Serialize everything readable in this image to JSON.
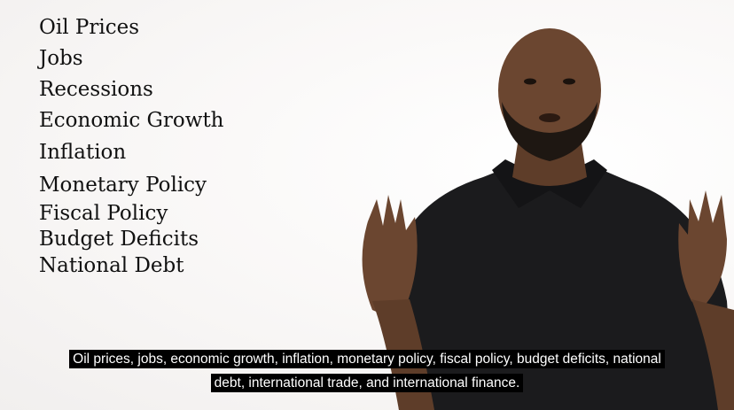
{
  "slide": {
    "topics": [
      "Oil Prices",
      "Jobs",
      "Recessions",
      "Economic Growth",
      "Inflation",
      "Monetary Policy",
      "Fiscal Policy",
      "Budget Deficits",
      "National Debt"
    ]
  },
  "subtitles": {
    "line1": "Oil prices, jobs, economic growth, inflation, monetary policy, fiscal policy, budget deficits, national",
    "line2": "debt, international trade, and international finance."
  },
  "colors": {
    "background": "#fdfcfc",
    "shirt": "#1b1b1d",
    "skin": "#6b4630",
    "caption_bg": "#000000"
  }
}
